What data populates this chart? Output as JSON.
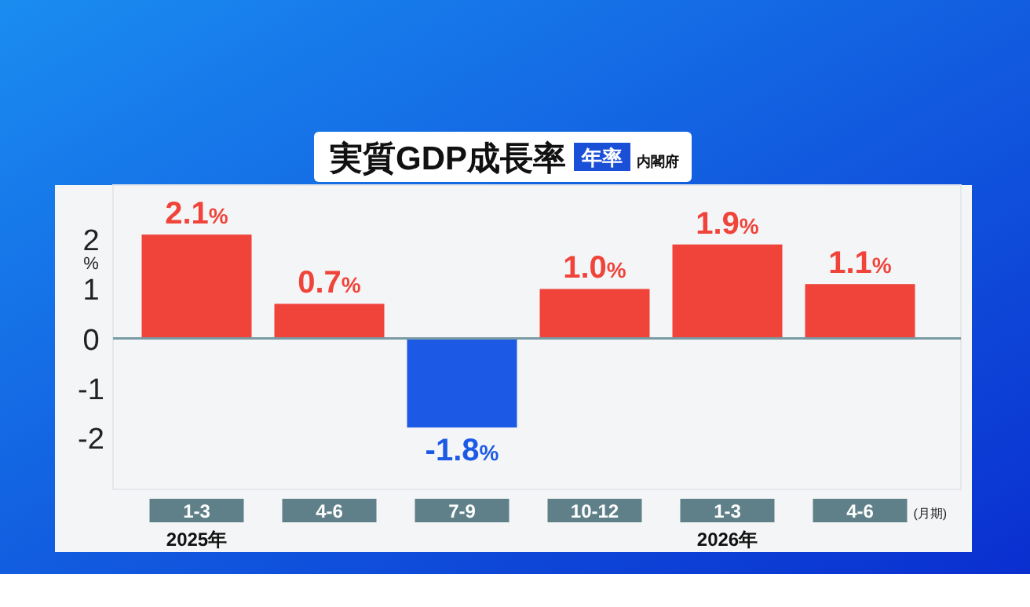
{
  "chart_data": {
    "type": "bar",
    "title": "実質GDP成長率",
    "subtitle": "年率",
    "ylabel": "%",
    "categories": [
      "1-3",
      "4-6",
      "7-9",
      "10-12",
      "1-3",
      "4-6"
    ],
    "values": [
      2.1,
      0.7,
      -1.8,
      1.0,
      1.9,
      1.1
    ],
    "colors": [
      "#f0443a",
      "#f0443a",
      "#1c5ae6",
      "#f0443a",
      "#f0443a",
      "#f0443a"
    ],
    "value_labels": [
      "2.1%",
      "0.7%",
      "-1.8%",
      "1.0%",
      "1.9%",
      "1.1%"
    ],
    "ylim": [
      -3.05,
      3.1
    ],
    "yticks": [
      -2,
      -1,
      0,
      1,
      2
    ],
    "ref_lines": [
      {
        "axis": "y",
        "value": 0,
        "color": "#7a9aa4"
      }
    ],
    "annotations": [
      "内閣府",
      "2025年",
      "2026年",
      "(月期)"
    ]
  }
}
